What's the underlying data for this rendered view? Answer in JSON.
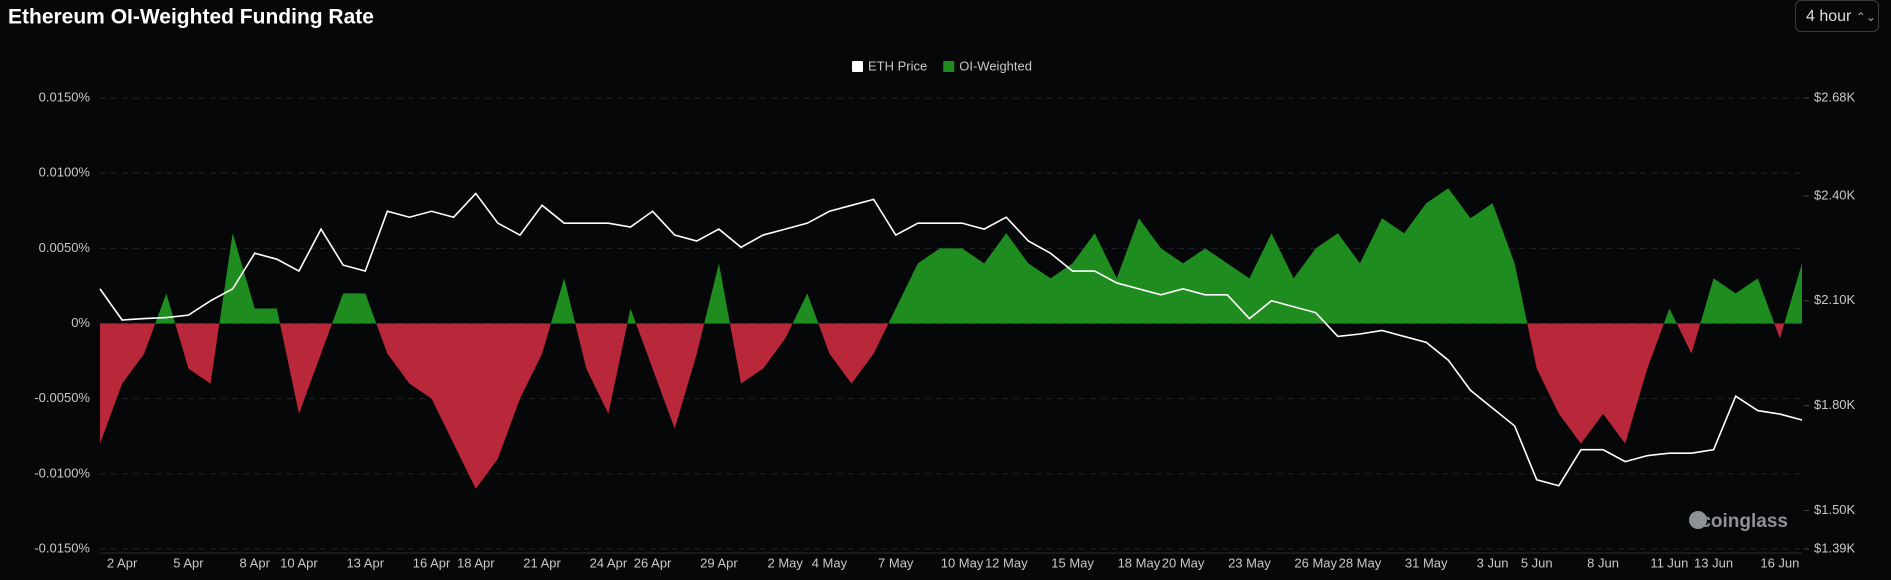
{
  "interval": "4 hour",
  "watermark": "coinglass",
  "chart_data": {
    "type": "area",
    "title": "Ethereum OI-Weighted Funding Rate",
    "categories": [
      null,
      "2 Apr",
      null,
      null,
      "5 Apr",
      null,
      null,
      "8 Apr",
      null,
      "10 Apr",
      null,
      null,
      "13 Apr",
      null,
      null,
      "16 Apr",
      null,
      "18 Apr",
      null,
      null,
      "21 Apr",
      null,
      null,
      "24 Apr",
      null,
      "26 Apr",
      null,
      null,
      "29 Apr",
      null,
      null,
      "2 May",
      null,
      "4 May",
      null,
      null,
      "7 May",
      null,
      null,
      "10 May",
      null,
      "12 May",
      null,
      null,
      "15 May",
      null,
      null,
      "18 May",
      null,
      "20 May",
      null,
      null,
      "23 May",
      null,
      null,
      "26 May",
      null,
      "28 May",
      null,
      null,
      "31 May",
      null,
      null,
      "3 Jun",
      null,
      "5 Jun",
      null,
      null,
      "8 Jun",
      null,
      null,
      "11 Jun",
      null,
      "13 Jun",
      null,
      null,
      "16 Jun",
      null
    ],
    "series": [
      {
        "name": "ETH Price",
        "color": "#ffffff",
        "axis": "y2",
        "values": [
          2134,
          2045,
          2049,
          2052,
          2059,
          2100,
          2134,
          2236,
          2219,
          2185,
          2305,
          2202,
          2185,
          2356,
          2339,
          2356,
          2339,
          2407,
          2322,
          2288,
          2373,
          2322,
          2322,
          2322,
          2311,
          2356,
          2288,
          2271,
          2305,
          2253,
          2288,
          2305,
          2322,
          2356,
          2373,
          2390,
          2288,
          2322,
          2322,
          2322,
          2305,
          2339,
          2271,
          2236,
          2185,
          2185,
          2151,
          2134,
          2117,
          2134,
          2117,
          2117,
          2049,
          2100,
          2083,
          2066,
          1998,
          2005,
          2015,
          1998,
          1981,
          1930,
          1844,
          1793,
          1742,
          1588,
          1571,
          1674,
          1674,
          1640,
          1657,
          1664,
          1664,
          1674,
          1827,
          1786,
          1776,
          1759
        ]
      },
      {
        "name": "OI-Weighted",
        "color": "#1e8c1e",
        "negative_color": "#b8283a",
        "values": [
          -0.008,
          -0.004,
          -0.002,
          0.002,
          -0.003,
          -0.004,
          0.006,
          0.001,
          0.001,
          -0.006,
          -0.002,
          0.002,
          0.002,
          -0.002,
          -0.004,
          -0.005,
          -0.008,
          -0.011,
          -0.009,
          -0.005,
          -0.002,
          0.003,
          -0.003,
          -0.006,
          0.001,
          -0.003,
          -0.007,
          -0.002,
          0.004,
          -0.004,
          -0.003,
          -0.001,
          0.002,
          -0.002,
          -0.004,
          -0.002,
          0.001,
          0.004,
          0.005,
          0.005,
          0.004,
          0.006,
          0.004,
          0.003,
          0.004,
          0.006,
          0.003,
          0.007,
          0.005,
          0.004,
          0.005,
          0.004,
          0.003,
          0.006,
          0.003,
          0.005,
          0.006,
          0.004,
          0.007,
          0.006,
          0.008,
          0.009,
          0.007,
          0.008,
          0.004,
          -0.003,
          -0.006,
          -0.008,
          -0.006,
          -0.008,
          -0.003,
          0.001,
          -0.002,
          0.003,
          0.002,
          0.003,
          -0.001,
          0.004
        ]
      }
    ],
    "ylim": [
      -0.015,
      0.015
    ],
    "yticks": [
      {
        "value": -0.015,
        "label": "-0.0150%"
      },
      {
        "value": -0.01,
        "label": "-0.0100%"
      },
      {
        "value": -0.005,
        "label": "-0.0050%"
      },
      {
        "value": 0,
        "label": "0%"
      },
      {
        "value": 0.005,
        "label": "0.0050%"
      },
      {
        "value": 0.01,
        "label": "0.0100%"
      },
      {
        "value": 0.015,
        "label": "0.0150%"
      }
    ],
    "y2lim": [
      1390,
      2680
    ],
    "y2ticks": [
      {
        "value": 1390,
        "label": "$1.39K"
      },
      {
        "value": 1500,
        "label": "$1.50K"
      },
      {
        "value": 1800,
        "label": "$1.80K"
      },
      {
        "value": 2100,
        "label": "$2.10K"
      },
      {
        "value": 2400,
        "label": "$2.40K"
      },
      {
        "value": 2680,
        "label": "$2.68K"
      }
    ],
    "grid": true
  }
}
